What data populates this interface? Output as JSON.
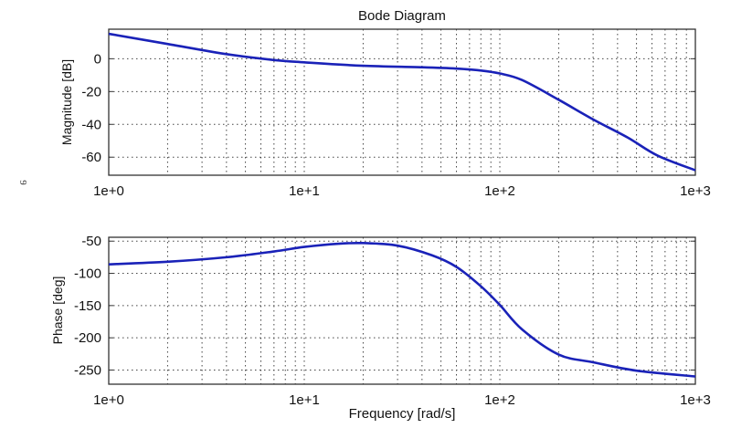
{
  "chart_data": [
    {
      "type": "line",
      "title": "Bode Diagram",
      "xlabel": "",
      "ylabel": "Magnitude [dB]",
      "xscale": "log",
      "xlim": [
        1,
        1000
      ],
      "ylim": [
        -71,
        18
      ],
      "xticks": [
        1,
        10,
        100,
        1000
      ],
      "xtick_labels": [
        "1e+0",
        "1e+1",
        "1e+2",
        "1e+3"
      ],
      "yticks": [
        0,
        -20,
        -40,
        -60
      ],
      "ytick_labels": [
        "0",
        "-20",
        "-40",
        "-60"
      ],
      "grid": true,
      "series": [
        {
          "name": "Magnitude",
          "color": "#1a22b8",
          "x": [
            1,
            2,
            4,
            7,
            10,
            20,
            40,
            60,
            80,
            100,
            130,
            200,
            300,
            450,
            640,
            1000
          ],
          "y": [
            15.2,
            9,
            2.8,
            -0.8,
            -2.2,
            -4.3,
            -5.2,
            -6,
            -7.2,
            -9,
            -13,
            -25,
            -37,
            -48,
            -59,
            -68
          ]
        }
      ]
    },
    {
      "type": "line",
      "title": "",
      "xlabel": "Frequency [rad/s]",
      "ylabel": "Phase [deg]",
      "xscale": "log",
      "xlim": [
        1,
        1000
      ],
      "ylim": [
        -272,
        -44
      ],
      "xticks": [
        1,
        10,
        100,
        1000
      ],
      "xtick_labels": [
        "1e+0",
        "1e+1",
        "1e+2",
        "1e+3"
      ],
      "yticks": [
        -50,
        -100,
        -150,
        -200,
        -250
      ],
      "ytick_labels": [
        "-50",
        "-100",
        "-150",
        "-200",
        "-250"
      ],
      "grid": true,
      "series": [
        {
          "name": "Phase",
          "color": "#1a22b8",
          "x": [
            1,
            2,
            4,
            7,
            10,
            15,
            20,
            30,
            45,
            60,
            80,
            100,
            130,
            200,
            300,
            500,
            1000
          ],
          "y": [
            -86,
            -82,
            -75,
            -66,
            -59,
            -54,
            -53,
            -57,
            -72,
            -90,
            -120,
            -149,
            -187,
            -226,
            -238,
            -251,
            -260
          ]
        }
      ]
    }
  ],
  "margin_mark": "9"
}
